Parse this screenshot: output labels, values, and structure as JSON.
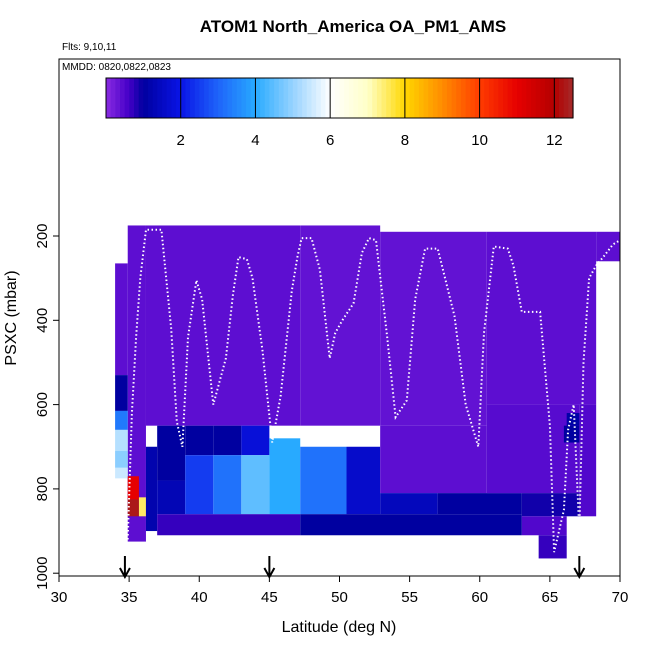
{
  "chart_data": {
    "type": "heatmap",
    "title": "ATOM1 North_America OA_PM1_AMS",
    "flights_label": "Flts: 9,10,11",
    "dates_label": "MMDD: 0820,0822,0823",
    "xlabel": "Latitude (deg N)",
    "ylabel": "PSXC (mbar)",
    "xlim": [
      30,
      70
    ],
    "ylim": [
      1000,
      100
    ],
    "x_ticks": [
      30,
      35,
      40,
      45,
      50,
      55,
      60,
      65,
      70
    ],
    "y_ticks": [
      200,
      400,
      600,
      800,
      1000
    ],
    "colorbar": {
      "range": [
        0,
        12.5
      ],
      "ticks": [
        2,
        4,
        6,
        8,
        10,
        12
      ]
    },
    "arrows_at_latitude": [
      34.7,
      45,
      67.1
    ],
    "grid_cells": [
      {
        "x0": 34.9,
        "x1": 36.2,
        "y0": 175,
        "y1": 925,
        "v": 0.4
      },
      {
        "x0": 36.2,
        "x1": 47.2,
        "y0": 175,
        "y1": 650,
        "v": 0.4
      },
      {
        "x0": 47.2,
        "x1": 52.9,
        "y0": 175,
        "y1": 650,
        "v": 0.35
      },
      {
        "x0": 52.9,
        "x1": 60.5,
        "y0": 190,
        "y1": 650,
        "v": 0.35
      },
      {
        "x0": 60.5,
        "x1": 68.3,
        "y0": 190,
        "y1": 600,
        "v": 0.4
      },
      {
        "x0": 68.3,
        "x1": 70,
        "y0": 190,
        "y1": 260,
        "v": 0.4
      },
      {
        "x0": 67.1,
        "x1": 68.3,
        "y0": 600,
        "y1": 865,
        "v": 0.5
      },
      {
        "x0": 34.0,
        "x1": 34.9,
        "y0": 265,
        "y1": 530,
        "v": 0.4
      },
      {
        "x0": 34.0,
        "x1": 34.9,
        "y0": 530,
        "y1": 615,
        "v": 1.0
      },
      {
        "x0": 34.0,
        "x1": 34.9,
        "y0": 615,
        "y1": 660,
        "v": 3.3
      },
      {
        "x0": 34.0,
        "x1": 34.9,
        "y0": 660,
        "y1": 710,
        "v": 5.3
      },
      {
        "x0": 34.0,
        "x1": 34.9,
        "y0": 710,
        "y1": 750,
        "v": 4.9
      },
      {
        "x0": 34.0,
        "x1": 34.9,
        "y0": 750,
        "y1": 775,
        "v": 5.5
      },
      {
        "x0": 34.9,
        "x1": 35.7,
        "y0": 770,
        "y1": 825,
        "v": 11.0
      },
      {
        "x0": 34.9,
        "x1": 35.7,
        "y0": 825,
        "y1": 865,
        "v": 12.3
      },
      {
        "x0": 35.7,
        "x1": 36.2,
        "y0": 820,
        "y1": 865,
        "v": 7.5
      },
      {
        "x0": 36.2,
        "x1": 37.0,
        "y0": 700,
        "y1": 900,
        "v": 1.2
      },
      {
        "x0": 37.0,
        "x1": 39.0,
        "y0": 650,
        "y1": 780,
        "v": 1.0
      },
      {
        "x0": 37.0,
        "x1": 39.0,
        "y0": 780,
        "y1": 860,
        "v": 1.3
      },
      {
        "x0": 39.0,
        "x1": 41.0,
        "y0": 650,
        "y1": 720,
        "v": 1.0
      },
      {
        "x0": 39.0,
        "x1": 41.0,
        "y0": 720,
        "y1": 860,
        "v": 2.5
      },
      {
        "x0": 41.0,
        "x1": 43.0,
        "y0": 650,
        "y1": 720,
        "v": 1.0
      },
      {
        "x0": 41.0,
        "x1": 43.0,
        "y0": 720,
        "y1": 860,
        "v": 3.2
      },
      {
        "x0": 43.0,
        "x1": 45.0,
        "y0": 650,
        "y1": 720,
        "v": 1.8
      },
      {
        "x0": 43.0,
        "x1": 45.0,
        "y0": 720,
        "y1": 860,
        "v": 4.5
      },
      {
        "x0": 45.0,
        "x1": 47.2,
        "y0": 680,
        "y1": 860,
        "v": 4.0
      },
      {
        "x0": 47.2,
        "x1": 50.5,
        "y0": 700,
        "y1": 860,
        "v": 3.2
      },
      {
        "x0": 50.5,
        "x1": 52.9,
        "y0": 700,
        "y1": 860,
        "v": 1.6
      },
      {
        "x0": 52.9,
        "x1": 60.5,
        "y0": 650,
        "y1": 810,
        "v": 0.4
      },
      {
        "x0": 52.9,
        "x1": 57.0,
        "y0": 810,
        "y1": 860,
        "v": 1.4
      },
      {
        "x0": 57.0,
        "x1": 63.0,
        "y0": 810,
        "y1": 860,
        "v": 1.0
      },
      {
        "x0": 60.5,
        "x1": 67.1,
        "y0": 600,
        "y1": 810,
        "v": 0.45
      },
      {
        "x0": 63.0,
        "x1": 67.1,
        "y0": 810,
        "y1": 865,
        "v": 0.9
      },
      {
        "x0": 37.0,
        "x1": 47.2,
        "y0": 860,
        "y1": 910,
        "v": 0.7
      },
      {
        "x0": 47.2,
        "x1": 63.0,
        "y0": 860,
        "y1": 910,
        "v": 1.0
      },
      {
        "x0": 63.0,
        "x1": 66.2,
        "y0": 865,
        "y1": 910,
        "v": 0.5
      },
      {
        "x0": 64.2,
        "x1": 66.2,
        "y0": 910,
        "y1": 965,
        "v": 0.7
      },
      {
        "x0": 66.0,
        "x1": 67.1,
        "y0": 650,
        "y1": 690,
        "v": 1.0
      },
      {
        "x0": 66.2,
        "x1": 67.1,
        "y0": 620,
        "y1": 650,
        "v": 1.1
      }
    ],
    "flight_track": [
      [
        34.9,
        920
      ],
      [
        35.2,
        620
      ],
      [
        35.5,
        440
      ],
      [
        35.8,
        300
      ],
      [
        36.2,
        185
      ],
      [
        37.3,
        185
      ],
      [
        38.0,
        420
      ],
      [
        38.4,
        640
      ],
      [
        38.8,
        700
      ],
      [
        39.2,
        440
      ],
      [
        39.8,
        305
      ],
      [
        40.2,
        350
      ],
      [
        41.0,
        600
      ],
      [
        41.9,
        490
      ],
      [
        42.4,
        340
      ],
      [
        42.8,
        250
      ],
      [
        43.4,
        255
      ],
      [
        43.8,
        300
      ],
      [
        44.5,
        470
      ],
      [
        45.2,
        690
      ],
      [
        45.8,
        580
      ],
      [
        46.6,
        330
      ],
      [
        47.0,
        250
      ],
      [
        47.3,
        205
      ],
      [
        48.0,
        205
      ],
      [
        48.6,
        280
      ],
      [
        49.0,
        400
      ],
      [
        49.3,
        490
      ],
      [
        49.7,
        430
      ],
      [
        50.2,
        400
      ],
      [
        51.0,
        360
      ],
      [
        51.6,
        240
      ],
      [
        52.1,
        205
      ],
      [
        52.6,
        210
      ],
      [
        53.4,
        440
      ],
      [
        54.0,
        630
      ],
      [
        54.8,
        590
      ],
      [
        55.4,
        350
      ],
      [
        56.1,
        230
      ],
      [
        57.0,
        230
      ],
      [
        58.2,
        390
      ],
      [
        59.0,
        600
      ],
      [
        59.9,
        700
      ],
      [
        60.3,
        430
      ],
      [
        61.0,
        225
      ],
      [
        62.0,
        230
      ],
      [
        62.4,
        270
      ],
      [
        63.0,
        380
      ],
      [
        64.3,
        380
      ],
      [
        65.0,
        650
      ],
      [
        65.3,
        950
      ],
      [
        66.0,
        850
      ],
      [
        66.3,
        660
      ],
      [
        66.7,
        600
      ],
      [
        67.1,
        900
      ],
      [
        67.4,
        500
      ],
      [
        67.8,
        300
      ],
      [
        68.3,
        270
      ],
      [
        68.8,
        250
      ],
      [
        69.5,
        220
      ],
      [
        70.0,
        210
      ]
    ]
  }
}
